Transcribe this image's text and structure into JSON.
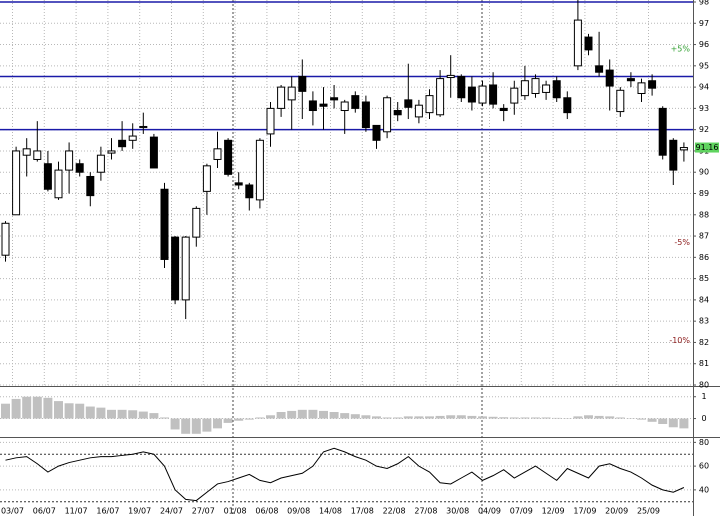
{
  "chart_data": [
    {
      "type": "candlestick",
      "categories": [
        "03/07",
        null,
        null,
        "06/07",
        null,
        null,
        "11/07",
        null,
        null,
        "16/07",
        null,
        null,
        "19/07",
        null,
        null,
        "24/07",
        null,
        null,
        "27/07",
        null,
        null,
        "01/08",
        null,
        null,
        "06/08",
        null,
        null,
        "09/08",
        null,
        null,
        "14/08",
        null,
        null,
        "17/08",
        null,
        null,
        "22/08",
        null,
        null,
        "27/08",
        null,
        null,
        "30/08",
        null,
        null,
        "04/09",
        null,
        null,
        "07/09",
        null,
        null,
        "12/09",
        null,
        null,
        "17/09",
        null,
        null,
        "20/09",
        null,
        null,
        "25/09",
        null,
        null,
        null,
        null
      ],
      "open": [
        86.1,
        88.0,
        90.8,
        90.6,
        90.4,
        88.8,
        90.1,
        90.4,
        89.8,
        90.0,
        90.9,
        91.5,
        91.5,
        92.1,
        91.65,
        89.2,
        86.95,
        84.0,
        86.95,
        89.1,
        90.6,
        91.5,
        89.5,
        89.4,
        88.7,
        91.8,
        93.0,
        93.4,
        94.5,
        93.35,
        93.2,
        93.5,
        92.9,
        93.6,
        93.3,
        92.2,
        91.9,
        92.9,
        93.4,
        92.6,
        92.8,
        92.7,
        94.45,
        94.5,
        94.0,
        93.25,
        94.1,
        93.0,
        93.25,
        93.6,
        93.7,
        93.75,
        94.3,
        93.5,
        95.0,
        96.35,
        95.0,
        94.8,
        92.85,
        94.4,
        93.7,
        94.3,
        93.0,
        91.5,
        91.05
      ],
      "high": [
        87.7,
        91.2,
        91.6,
        92.4,
        91.0,
        90.5,
        91.4,
        90.6,
        90.0,
        91.2,
        91.6,
        92.4,
        92.3,
        92.8,
        91.8,
        89.5,
        87.0,
        87.0,
        88.4,
        90.4,
        91.9,
        91.6,
        90.0,
        89.5,
        91.6,
        93.3,
        94.1,
        94.5,
        95.3,
        93.8,
        94.0,
        94.1,
        93.4,
        93.8,
        93.6,
        92.2,
        93.6,
        93.3,
        95.1,
        93.4,
        93.9,
        94.8,
        95.5,
        94.6,
        94.5,
        94.3,
        94.7,
        93.2,
        94.3,
        95.0,
        94.6,
        94.3,
        94.5,
        93.8,
        98.1,
        96.5,
        96.6,
        95.3,
        94.0,
        94.7,
        94.4,
        94.6,
        93.1,
        91.6,
        91.4
      ],
      "low": [
        85.8,
        88.0,
        89.8,
        90.5,
        89.1,
        88.7,
        89.0,
        89.8,
        88.4,
        89.6,
        90.6,
        91.0,
        91.1,
        91.8,
        90.2,
        85.5,
        83.8,
        83.1,
        86.5,
        88.0,
        90.2,
        89.8,
        89.2,
        88.2,
        88.3,
        91.2,
        92.6,
        92.0,
        92.5,
        92.2,
        92.0,
        93.0,
        91.8,
        92.8,
        91.9,
        91.1,
        91.6,
        92.4,
        92.5,
        92.3,
        92.5,
        92.6,
        93.5,
        93.3,
        92.9,
        93.1,
        93.0,
        92.4,
        92.7,
        93.4,
        93.5,
        93.4,
        93.3,
        92.5,
        94.8,
        95.5,
        94.5,
        92.9,
        92.6,
        94.0,
        93.3,
        93.6,
        90.6,
        89.4,
        90.5
      ],
      "close": [
        87.6,
        91.0,
        91.1,
        91.0,
        89.2,
        90.1,
        91.0,
        90.0,
        88.9,
        90.8,
        91.0,
        91.2,
        91.7,
        92.15,
        90.2,
        85.9,
        84.0,
        86.95,
        88.3,
        90.3,
        91.1,
        89.9,
        89.4,
        88.8,
        91.5,
        93.0,
        94.0,
        94.0,
        93.8,
        92.9,
        93.1,
        93.4,
        93.3,
        93.0,
        92.1,
        91.5,
        93.5,
        92.7,
        93.05,
        93.15,
        93.6,
        94.4,
        94.55,
        93.5,
        93.3,
        94.05,
        93.2,
        92.9,
        93.95,
        94.3,
        94.4,
        94.1,
        93.5,
        92.8,
        97.15,
        95.75,
        94.7,
        94.05,
        93.85,
        94.3,
        94.2,
        93.95,
        90.8,
        90.1,
        91.16
      ],
      "ylim": [
        80,
        98
      ],
      "yticks": [
        80,
        81,
        82,
        83,
        84,
        85,
        86,
        87,
        88,
        89,
        90,
        91,
        92,
        93,
        94,
        95,
        96,
        97,
        98
      ],
      "hlines": [
        98,
        94.5,
        92
      ],
      "annotations": [
        {
          "text": "+5%",
          "level": 95.8,
          "color": "#2e9e2e"
        },
        {
          "text": "-5%",
          "level": 86.7,
          "color": "#8b1a1a"
        },
        {
          "text": "-10%",
          "level": 82.1,
          "color": "#8b1a1a"
        }
      ],
      "last_price": 91.16,
      "grid": true
    },
    {
      "type": "bar",
      "color": "#c0c0c0",
      "values": [
        0.68,
        0.9,
        1.0,
        1.0,
        0.95,
        0.8,
        0.7,
        0.68,
        0.55,
        0.5,
        0.4,
        0.4,
        0.38,
        0.32,
        0.25,
        0.05,
        -0.5,
        -0.7,
        -0.7,
        -0.6,
        -0.45,
        -0.2,
        -0.1,
        -0.05,
        0.05,
        0.15,
        0.3,
        0.35,
        0.4,
        0.4,
        0.35,
        0.3,
        0.25,
        0.2,
        0.15,
        0.1,
        0.05,
        0.05,
        0.1,
        0.1,
        0.1,
        0.12,
        0.15,
        0.15,
        0.12,
        0.1,
        0.08,
        0.06,
        0.05,
        0.05,
        0.05,
        0.05,
        0.03,
        0.02,
        0.1,
        0.15,
        0.12,
        0.1,
        0.05,
        0.02,
        -0.05,
        -0.15,
        -0.25,
        -0.4,
        -0.45
      ],
      "ylim": [
        -0.8,
        1.4
      ],
      "yticks": [
        0,
        1
      ]
    },
    {
      "type": "line",
      "color": "#000000",
      "values": [
        65,
        67,
        68,
        62,
        55,
        60,
        63,
        65,
        67,
        68,
        68,
        69,
        70,
        72,
        70,
        60,
        40,
        32,
        31,
        38,
        45,
        47,
        50,
        53,
        48,
        46,
        50,
        52,
        54,
        60,
        72,
        75,
        72,
        68,
        65,
        60,
        58,
        62,
        68,
        60,
        55,
        46,
        45,
        50,
        55,
        48,
        52,
        57,
        50,
        55,
        60,
        54,
        48,
        58,
        54,
        50,
        60,
        62,
        58,
        55,
        50,
        44,
        40,
        38,
        42
      ],
      "ylim": [
        18,
        82
      ],
      "yticks": [
        40,
        60,
        80
      ],
      "hlines": [
        70,
        30
      ]
    }
  ]
}
